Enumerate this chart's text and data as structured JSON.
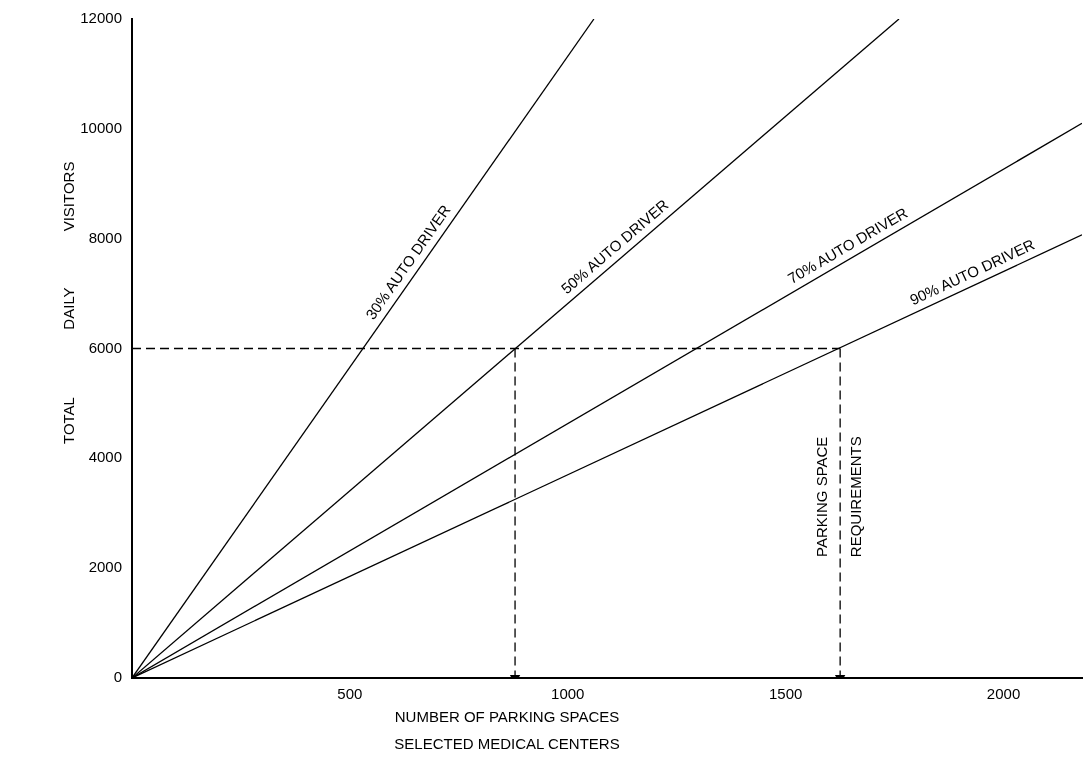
{
  "chart_data": {
    "type": "line",
    "xlabel": "NUMBER OF PARKING SPACES\nSELECTED MEDICAL CENTERS",
    "ylabel": "TOTAL DAILY VISITORS",
    "series": [
      {
        "name": "30% AUTO DRIVER",
        "color": "#000000",
        "x": [
          0,
          1060
        ],
        "values": [
          0,
          12000
        ]
      },
      {
        "name": "50% AUTO DRIVER",
        "color": "#000000",
        "x": [
          0,
          1760
        ],
        "values": [
          0,
          12000
        ]
      },
      {
        "name": "70% AUTO DRIVER",
        "color": "#000000",
        "x": [
          0,
          2180
        ],
        "values": [
          0,
          10100
        ]
      },
      {
        "name": "90% AUTO DRIVER",
        "color": "#000000",
        "x": [
          0,
          2180
        ],
        "values": [
          0,
          8070
        ]
      },
      {
        "color": "#000000",
        "line_style": "dashed",
        "x": [
          0,
          1625
        ],
        "values": [
          6000,
          6000
        ]
      },
      {
        "color": "#000000",
        "line_style": "dashed",
        "marker": "triangle",
        "x": [
          879,
          879
        ],
        "values": [
          6000,
          0
        ]
      },
      {
        "color": "#000000",
        "line_style": "dashed",
        "marker": "triangle",
        "x": [
          1625,
          1625
        ],
        "values": [
          6000,
          0
        ]
      }
    ],
    "annotations": [
      {
        "text": "PARKING SPACE\nREQUIREMENTS",
        "x": 1625,
        "y": 3300
      }
    ],
    "xlim": [
      0,
      2180
    ],
    "xticks": [
      500,
      1000,
      1500,
      2000
    ],
    "ylim": [
      0,
      12000
    ],
    "yticks": [
      0,
      2000,
      4000,
      6000,
      8000,
      10000,
      12000
    ],
    "grid": false,
    "legend": false,
    "marker": "none",
    "line_style": "solid"
  }
}
